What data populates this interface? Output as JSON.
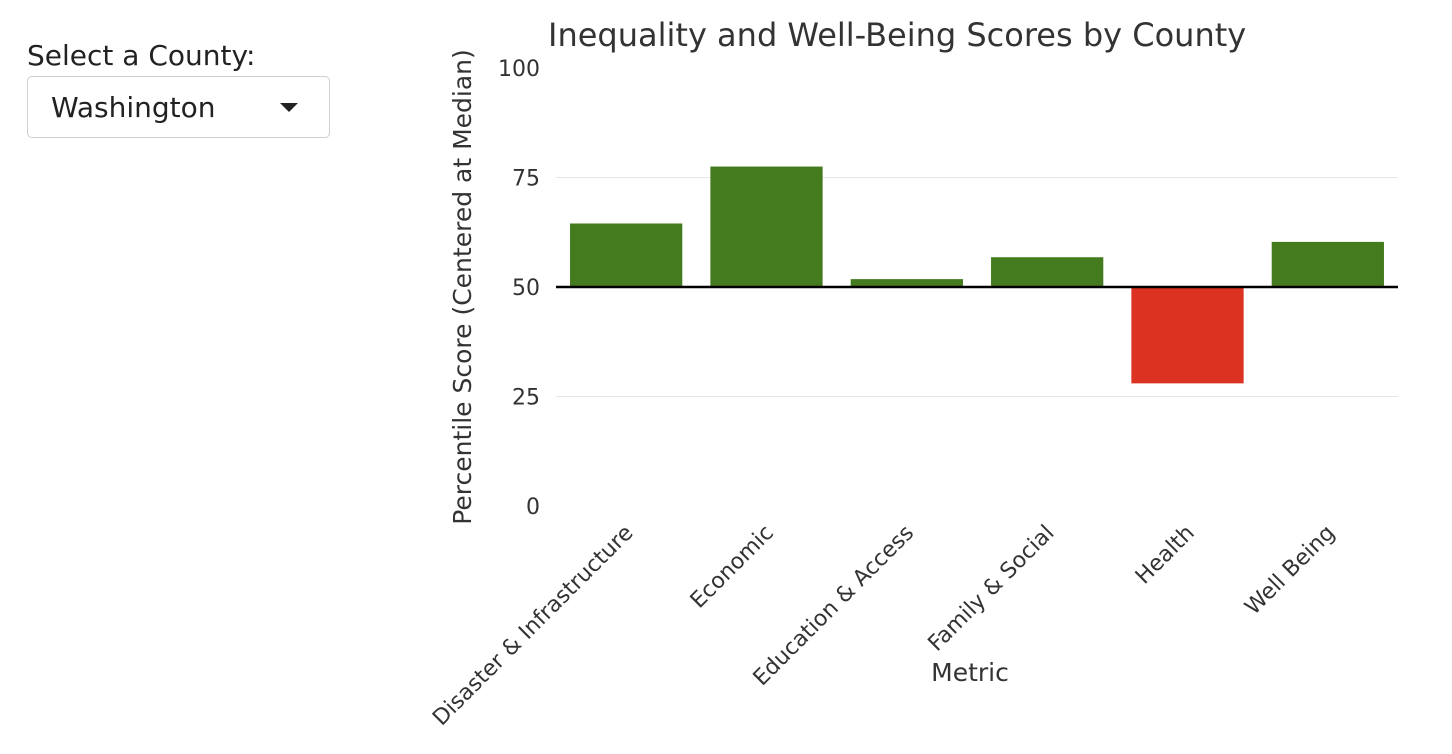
{
  "sidebar": {
    "label": "Select a County:",
    "selected_county": "Washington",
    "caret_icon": "caret-down-icon"
  },
  "chart_data": {
    "type": "bar",
    "title": "Inequality and Well-Being Scores by County",
    "xlabel": "Metric",
    "ylabel": "Percentile Score (Centered at Median)",
    "categories": [
      "Disaster & Infrastructure",
      "Economic",
      "Education & Access",
      "Family & Social",
      "Health",
      "Well Being"
    ],
    "values": [
      64.5,
      77.5,
      51.8,
      56.8,
      28,
      60.3
    ],
    "baseline": 50,
    "ylim": [
      0,
      100
    ],
    "yticks": [
      0,
      25,
      50,
      75,
      100
    ],
    "grid": true,
    "colors": {
      "above": "#457b1f",
      "below": "#dc3221",
      "baseline": "#000000",
      "grid": "#e5e5e5"
    }
  }
}
